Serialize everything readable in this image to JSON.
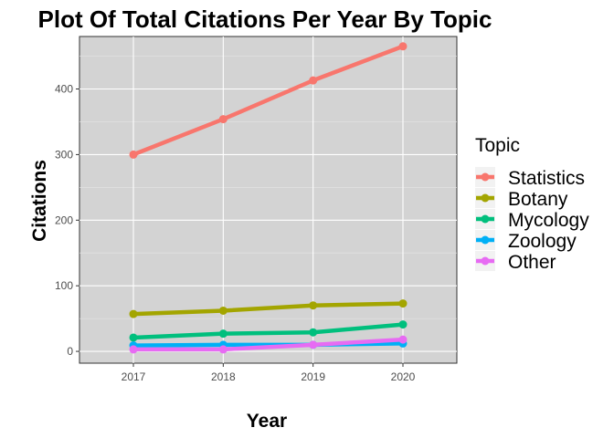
{
  "chart_data": {
    "type": "line",
    "title": "Plot Of Total Citations Per Year By Topic",
    "xlabel": "Year",
    "ylabel": "Citations",
    "x": [
      2017,
      2018,
      2019,
      2020
    ],
    "xlim": [
      2016.4,
      2020.6
    ],
    "ylim": [
      -18,
      480
    ],
    "yticks": [
      0,
      100,
      200,
      300,
      400
    ],
    "grid": true,
    "legend": {
      "title": "Topic",
      "position": "right"
    },
    "series": [
      {
        "name": "Statistics",
        "color": "#F8766D",
        "values": [
          300,
          354,
          413,
          465
        ]
      },
      {
        "name": "Botany",
        "color": "#A3A500",
        "values": [
          57,
          62,
          70,
          73
        ]
      },
      {
        "name": "Mycology",
        "color": "#00BF7D",
        "values": [
          21,
          27,
          29,
          41
        ]
      },
      {
        "name": "Zoology",
        "color": "#00B0F6",
        "values": [
          9,
          10,
          10,
          12
        ]
      },
      {
        "name": "Other",
        "color": "#E76BF3",
        "values": [
          3,
          3,
          10,
          18
        ]
      }
    ]
  }
}
